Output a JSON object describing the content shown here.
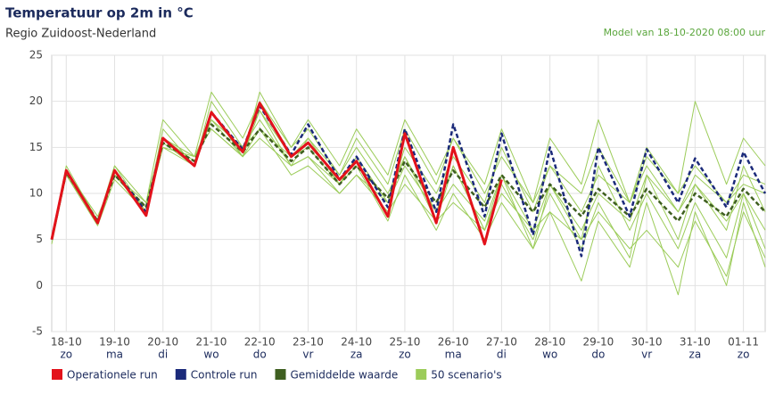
{
  "chart_data": {
    "type": "line",
    "title": "Temperatuur op 2m in °C",
    "subtitle": "Regio Zuidoost-Nederland",
    "annotation": "Model van 18-10-2020 08:00 uur",
    "x": [
      0.3,
      0.6,
      1.25,
      1.6,
      2.25,
      2.6,
      3.25,
      3.6,
      4.25,
      4.6,
      5.25,
      5.6,
      6.25,
      6.6,
      7.25,
      7.6,
      8.25,
      8.6,
      9.25,
      9.6,
      10.25,
      10.6,
      11.25,
      11.6,
      12.25,
      12.6,
      13.25,
      13.6,
      14.25,
      14.6,
      15.05
    ],
    "xlim": [
      0.3,
      15.05
    ],
    "xticks": [
      {
        "value": 0.6,
        "label": "18-10"
      },
      {
        "value": 1.6,
        "label": "19-10"
      },
      {
        "value": 2.6,
        "label": "20-10"
      },
      {
        "value": 3.6,
        "label": "21-10"
      },
      {
        "value": 4.6,
        "label": "22-10"
      },
      {
        "value": 5.6,
        "label": "23-10"
      },
      {
        "value": 6.6,
        "label": "24-10"
      },
      {
        "value": 7.6,
        "label": "25-10"
      },
      {
        "value": 8.6,
        "label": "26-10"
      },
      {
        "value": 9.6,
        "label": "27-10"
      },
      {
        "value": 10.6,
        "label": "28-10"
      },
      {
        "value": 11.6,
        "label": "29-10"
      },
      {
        "value": 12.6,
        "label": "30-10"
      },
      {
        "value": 13.6,
        "label": "31-10"
      },
      {
        "value": 14.6,
        "label": "01-11"
      }
    ],
    "weekdays": [
      "zo",
      "ma",
      "di",
      "wo",
      "do",
      "vr",
      "za",
      "zo",
      "ma",
      "di",
      "wo",
      "do",
      "vr",
      "za",
      "zo"
    ],
    "ylim": [
      -5,
      25
    ],
    "yticks": [
      -5,
      0,
      5,
      10,
      15,
      20,
      25
    ],
    "grid": true,
    "series": [
      {
        "name": "Operationele run",
        "color": "#e3121b",
        "dash": false,
        "values": [
          5,
          12.5,
          6.8,
          12.5,
          7.6,
          16,
          13,
          18.8,
          14.5,
          19.8,
          14,
          15.5,
          11.5,
          13.5,
          7.5,
          16.5,
          6.8,
          15,
          4.5,
          11.5,
          null,
          null,
          null,
          null,
          null,
          null,
          null,
          null,
          null,
          null,
          null
        ]
      },
      {
        "name": "Controle run",
        "color": "#1b2a7a",
        "dash": true,
        "values": [
          5,
          12.5,
          6.8,
          12.5,
          8,
          16,
          13,
          18.8,
          14.8,
          19.5,
          14.2,
          17.5,
          11.5,
          14,
          8.5,
          17,
          8,
          17.5,
          7.5,
          16.5,
          5.5,
          15,
          3.2,
          15,
          7.5,
          14.8,
          9,
          13.8,
          8.5,
          14.5,
          10
        ]
      },
      {
        "name": "Gemiddelde waarde",
        "color": "#3f5f20",
        "dash": true,
        "values": [
          5,
          12.3,
          7,
          12,
          8.5,
          15.5,
          13.5,
          17.5,
          14.5,
          17,
          13.5,
          15,
          11,
          13,
          9.5,
          13.5,
          9,
          12.5,
          8.5,
          12,
          8,
          11,
          7.5,
          10.5,
          7.5,
          10.5,
          7,
          10,
          7.5,
          10.5,
          8
        ]
      }
    ],
    "scenarios": {
      "name": "50 scenario's",
      "color": "#9ccc5a",
      "values": [
        [
          5,
          12,
          7,
          12,
          9,
          16,
          14,
          18,
          15,
          17,
          14,
          16,
          12,
          15,
          10,
          14,
          8,
          13,
          6,
          11,
          5,
          10,
          4,
          9,
          3,
          12,
          5,
          11,
          6,
          13,
          8
        ],
        [
          5,
          12.5,
          7,
          13,
          8,
          17,
          13,
          20,
          15,
          19,
          13,
          14,
          10,
          12,
          9,
          15,
          10,
          14,
          9,
          15,
          8,
          13,
          10,
          15,
          9,
          13,
          8,
          12,
          9,
          11,
          10
        ],
        [
          4.5,
          12,
          6.5,
          11.5,
          8,
          15,
          14,
          17,
          14,
          16,
          13,
          14,
          11,
          13,
          7,
          12,
          6,
          10,
          5,
          9,
          4,
          8,
          0.5,
          7,
          2,
          9,
          -1,
          8,
          0,
          9,
          2
        ],
        [
          5,
          13,
          7,
          13,
          9,
          18,
          14,
          21,
          16,
          20,
          15,
          17,
          12,
          16,
          11,
          17,
          11,
          16,
          10,
          14,
          9,
          13,
          8,
          12,
          9,
          14,
          10,
          13,
          9,
          12,
          11
        ],
        [
          5,
          12,
          7,
          12,
          8,
          15,
          13,
          18,
          15,
          18,
          13,
          16,
          11,
          14,
          9,
          13,
          8,
          11,
          7,
          12,
          6,
          11,
          5,
          13,
          6,
          10,
          4,
          9,
          3,
          10,
          4
        ],
        [
          5,
          12.5,
          7.5,
          12,
          8.5,
          16,
          14,
          17,
          14,
          17,
          12,
          13,
          10,
          12,
          8,
          11,
          7,
          9,
          6,
          10,
          6,
          8,
          5,
          8,
          4,
          6,
          2,
          7,
          1,
          8,
          3
        ],
        [
          5,
          12,
          7,
          12.5,
          8,
          15.5,
          13,
          19,
          14,
          21,
          15,
          18,
          13,
          17,
          12,
          18,
          12,
          16,
          11,
          17,
          9,
          16,
          11,
          18,
          9,
          15,
          10,
          20,
          11,
          16,
          13
        ],
        [
          5,
          12.5,
          7,
          12,
          8,
          16,
          13.5,
          18,
          14,
          19,
          14,
          15,
          11,
          14,
          9,
          14,
          7,
          13,
          6,
          12,
          4,
          11,
          6,
          10,
          7,
          12,
          8,
          11,
          7,
          10,
          6
        ]
      ]
    }
  }
}
